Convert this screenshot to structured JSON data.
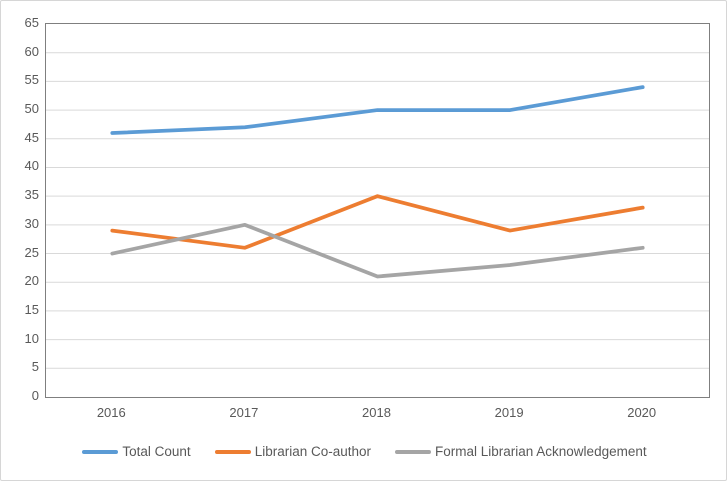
{
  "chart_data": {
    "type": "line",
    "title": "",
    "xlabel": "",
    "ylabel": "",
    "categories": [
      "2016",
      "2017",
      "2018",
      "2019",
      "2020"
    ],
    "series": [
      {
        "name": "Total Count",
        "color": "#5B9BD5",
        "values": [
          46,
          47,
          50,
          50,
          54
        ]
      },
      {
        "name": "Librarian Co-author",
        "color": "#ED7D31",
        "values": [
          29,
          26,
          35,
          29,
          33
        ]
      },
      {
        "name": "Formal Librarian Acknowledgement",
        "color": "#A5A5A5",
        "values": [
          25,
          30,
          21,
          23,
          26
        ]
      }
    ],
    "ylim": [
      0,
      65
    ],
    "ytick_step": 5,
    "grid": true,
    "legend_position": "bottom",
    "colors": {
      "gridline": "#d9d9d9",
      "plot_border": "#7f7f7f",
      "axis_text": "#595959",
      "frame_border": "#d6d6d6",
      "background": "#ffffff"
    }
  }
}
